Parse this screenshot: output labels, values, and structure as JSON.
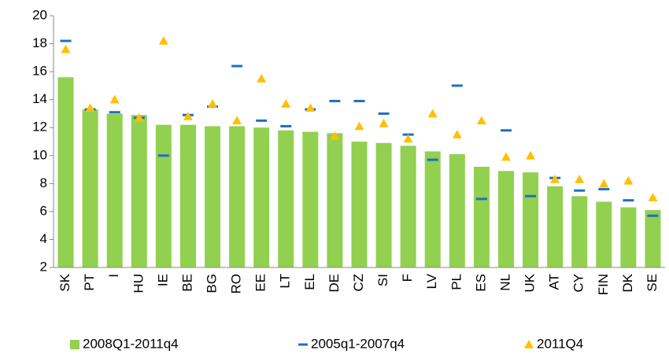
{
  "chart_data": {
    "type": "bar",
    "categories": [
      "SK",
      "PT",
      "I",
      "HU",
      "IE",
      "BE",
      "BG",
      "RO",
      "EE",
      "LT",
      "EL",
      "DE",
      "CZ",
      "SI",
      "F",
      "LV",
      "PL",
      "ES",
      "NL",
      "UK",
      "AT",
      "CY",
      "FIN",
      "DK",
      "SE"
    ],
    "series": [
      {
        "name": "2008Q1-2011q4",
        "color": "#92d050",
        "marker": "bar",
        "values": [
          15.6,
          13.3,
          13.0,
          12.9,
          12.2,
          12.2,
          12.1,
          12.1,
          12.0,
          11.8,
          11.7,
          11.6,
          11.0,
          10.9,
          10.7,
          10.3,
          10.1,
          9.2,
          8.9,
          8.8,
          7.8,
          7.1,
          6.7,
          6.3,
          6.1
        ]
      },
      {
        "name": "2005q1-2007q4",
        "color": "#1f6fc5",
        "marker": "dash",
        "values": [
          18.2,
          13.3,
          13.1,
          12.7,
          10.0,
          12.9,
          13.5,
          16.4,
          12.5,
          12.1,
          13.3,
          13.9,
          13.9,
          13.0,
          11.5,
          9.7,
          15.0,
          6.9,
          11.8,
          7.1,
          8.4,
          7.5,
          7.6,
          6.8,
          5.7
        ]
      },
      {
        "name": "2011Q4",
        "color": "#ffc000",
        "marker": "triangle",
        "values": [
          17.6,
          13.4,
          14.0,
          12.7,
          18.2,
          12.8,
          13.7,
          12.5,
          15.5,
          13.7,
          13.4,
          11.4,
          12.1,
          12.3,
          11.2,
          13.0,
          11.5,
          12.5,
          9.9,
          10.0,
          8.3,
          8.3,
          8.0,
          8.2,
          7.0
        ]
      }
    ],
    "ylim": [
      2,
      20
    ],
    "yticks": [
      2,
      4,
      6,
      8,
      10,
      12,
      14,
      16,
      18,
      20
    ],
    "grid": false
  }
}
